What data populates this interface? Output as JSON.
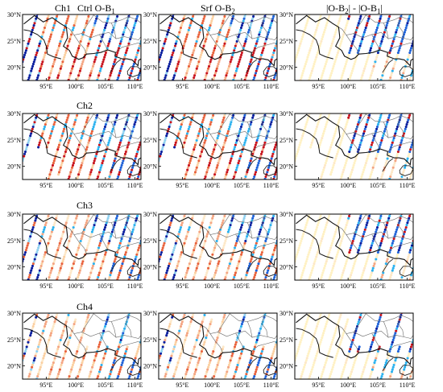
{
  "figure": {
    "column_titles": [
      {
        "prefix": "Ctrl  O-B",
        "sub": "1",
        "suffix": ""
      },
      {
        "prefix": "Srf  O-B",
        "sub": "2",
        "suffix": ""
      },
      {
        "prefix": "|O-B",
        "sub": "2",
        "mid": "| - |O-B",
        "sub2": "1",
        "suffix": "|"
      }
    ],
    "row_labels": [
      "Ch1",
      "Ch2",
      "Ch3",
      "Ch4"
    ],
    "lat_ticks": [
      "30°N",
      "25°N",
      "20°N"
    ],
    "lon_ticks": [
      "95°E",
      "100°E",
      "105°E",
      "110°E"
    ],
    "extent": {
      "lon_min": 91,
      "lon_max": 111,
      "lat_min": 17.5,
      "lat_max": 30
    },
    "colors": {
      "dark_red": "#c8141e",
      "orange_red": "#e8623c",
      "salmon": "#f4a582",
      "light_orange": "#fbd0a2",
      "pale": "#fde8c8",
      "pale_yellow": "#fff1c4",
      "light_blue": "#8fd0f0",
      "sky_blue": "#2cb2ef",
      "blue": "#1f62d8",
      "dark_blue": "#0b1f9e",
      "border": "#111111",
      "province": "#666666"
    }
  }
}
